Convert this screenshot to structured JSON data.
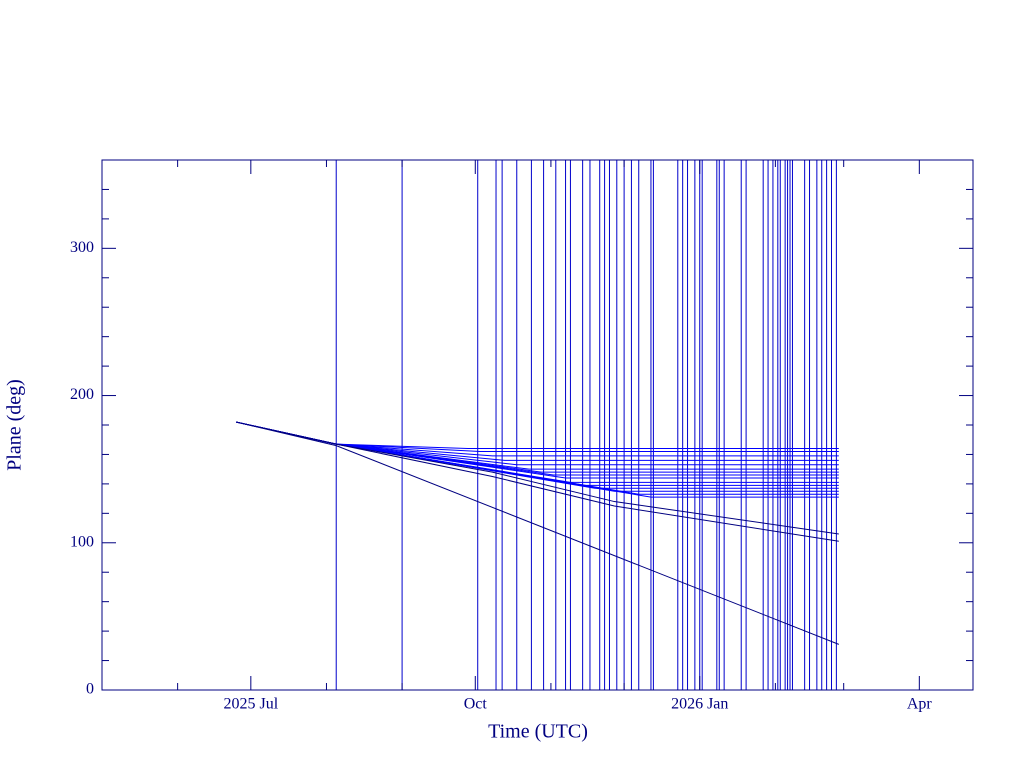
{
  "chart_data": {
    "type": "line",
    "xlabel": "Time (UTC)",
    "ylabel": "Plane (deg)",
    "xlim": [
      120,
      477
    ],
    "ylim": [
      0,
      360
    ],
    "xticks": [
      {
        "value": 181,
        "label": "2025 Jul"
      },
      {
        "value": 273,
        "label": "Oct"
      },
      {
        "value": 365,
        "label": "2026 Jan"
      },
      {
        "value": 455,
        "label": "Apr"
      }
    ],
    "xminor": [
      151,
      212,
      243,
      304,
      334,
      396,
      424
    ],
    "yticks": [
      0,
      100,
      200,
      300
    ],
    "yminor": [
      20,
      40,
      60,
      80,
      120,
      140,
      160,
      180,
      220,
      240,
      260,
      280,
      320,
      340
    ],
    "axis_color": "#000080",
    "event_color": "#0000cc",
    "events": [
      216,
      243,
      274,
      281.5,
      284,
      290,
      296,
      301,
      306,
      310,
      312,
      317,
      320,
      324,
      326,
      328,
      331,
      334,
      337,
      340,
      345,
      346,
      356,
      358,
      360,
      363,
      365,
      366,
      372,
      373,
      375,
      382,
      384,
      391,
      393,
      395,
      397,
      398,
      400,
      401,
      402,
      403,
      408,
      410,
      413,
      415,
      417,
      419,
      421
    ],
    "series": [
      {
        "color": "#0000ff",
        "x": [
          175,
          216,
          270,
          422
        ],
        "values": [
          182,
          167,
          164,
          164
        ]
      },
      {
        "color": "#0000ff",
        "x": [
          175,
          216,
          275,
          422
        ],
        "values": [
          182,
          167,
          162,
          162
        ]
      },
      {
        "color": "#0000ff",
        "x": [
          175,
          216,
          280,
          422
        ],
        "values": [
          182,
          167,
          159,
          159
        ]
      },
      {
        "color": "#0000ff",
        "x": [
          175,
          216,
          285,
          422
        ],
        "values": [
          182,
          167,
          156,
          156
        ]
      },
      {
        "color": "#0000ff",
        "x": [
          175,
          216,
          290,
          422
        ],
        "values": [
          182,
          167,
          153,
          153
        ]
      },
      {
        "color": "#0000ff",
        "x": [
          175,
          216,
          295,
          422
        ],
        "values": [
          182,
          167,
          150,
          150
        ]
      },
      {
        "color": "#0000ff",
        "x": [
          175,
          216,
          300,
          422
        ],
        "values": [
          182,
          167,
          148,
          148
        ]
      },
      {
        "color": "#0000ff",
        "x": [
          175,
          216,
          305,
          422
        ],
        "values": [
          182,
          167,
          146,
          146
        ]
      },
      {
        "color": "#0000ff",
        "x": [
          175,
          216,
          310,
          422
        ],
        "values": [
          182,
          167,
          144,
          144
        ]
      },
      {
        "color": "#0000ff",
        "x": [
          175,
          216,
          312,
          422
        ],
        "values": [
          182,
          167,
          141,
          141
        ]
      },
      {
        "color": "#0000ff",
        "x": [
          175,
          216,
          318,
          422
        ],
        "values": [
          182,
          167,
          139,
          139
        ]
      },
      {
        "color": "#0000ff",
        "x": [
          175,
          216,
          322,
          422
        ],
        "values": [
          182,
          167,
          137,
          137
        ]
      },
      {
        "color": "#0000ff",
        "x": [
          175,
          216,
          330,
          422
        ],
        "values": [
          182,
          167,
          135,
          135
        ]
      },
      {
        "color": "#0000ff",
        "x": [
          175,
          216,
          340,
          422
        ],
        "values": [
          182,
          167,
          133,
          133
        ]
      },
      {
        "color": "#0000ff",
        "x": [
          175,
          216,
          345,
          422
        ],
        "values": [
          182,
          167,
          131,
          131
        ]
      },
      {
        "color": "#000080",
        "x": [
          175,
          216,
          280,
          330,
          422
        ],
        "values": [
          182,
          167,
          148,
          128,
          106
        ]
      },
      {
        "color": "#000080",
        "x": [
          175,
          216,
          280,
          330,
          422
        ],
        "values": [
          182,
          167,
          145,
          125,
          101
        ]
      },
      {
        "color": "#000080",
        "x": [
          175,
          216,
          422
        ],
        "values": [
          182,
          166,
          31
        ]
      }
    ]
  }
}
